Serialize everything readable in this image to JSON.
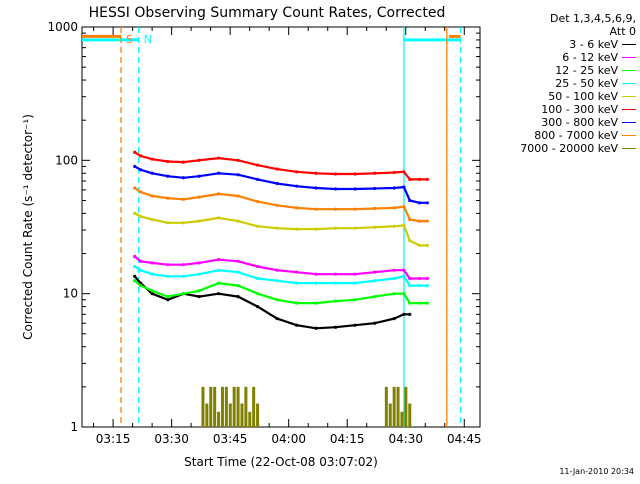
{
  "footer": {
    "date": "11-Jan-2010 20:34"
  },
  "legend": {
    "header_line1": "Det 1,3,4,5,6,9,",
    "header_line2": "Att 0"
  },
  "chart_data": {
    "type": "line",
    "title": "HESSI Observing Summary Count Rates, Corrected",
    "xlabel": "Start Time (22-Oct-08 03:07:02)",
    "ylabel": "Corrected Count Rate (s⁻¹ detector⁻¹)",
    "yscale": "log",
    "ylim": [
      1,
      1000
    ],
    "y_ticks": [
      {
        "value": 1,
        "label": "1"
      },
      {
        "value": 10,
        "label": "10"
      },
      {
        "value": 100,
        "label": "100"
      },
      {
        "value": 1000,
        "label": "1000"
      }
    ],
    "x_unit": "minutes from 03:07:02",
    "xlim": [
      0,
      102
    ],
    "x_ticks": [
      {
        "value": 7.97,
        "label": "03:15"
      },
      {
        "value": 22.97,
        "label": "03:30"
      },
      {
        "value": 37.97,
        "label": "03:45"
      },
      {
        "value": 52.97,
        "label": "04:00"
      },
      {
        "value": 67.97,
        "label": "04:15"
      },
      {
        "value": 82.97,
        "label": "04:30"
      },
      {
        "value": 97.97,
        "label": "04:45"
      }
    ],
    "grid": false,
    "legend_position": "right",
    "series": [
      {
        "name": "3 - 6 keV",
        "color": "#000000",
        "x": [
          13.5,
          15,
          18,
          22,
          26,
          30,
          35,
          40,
          45,
          50,
          55,
          60,
          65,
          70,
          75,
          80,
          82.5,
          84
        ],
        "values": [
          13.5,
          12,
          10,
          9,
          10,
          9.5,
          10,
          9.5,
          8,
          6.5,
          5.8,
          5.5,
          5.6,
          5.8,
          6,
          6.5,
          7,
          7
        ]
      },
      {
        "name": "6 - 12 keV",
        "color": "#ff00ff",
        "x": [
          13.5,
          15,
          18,
          22,
          26,
          30,
          35,
          40,
          45,
          50,
          55,
          60,
          65,
          70,
          75,
          80,
          82.5,
          84,
          86.5,
          88.5
        ],
        "values": [
          19,
          17.5,
          17,
          16.5,
          16.5,
          17,
          18,
          17.5,
          16,
          15,
          14.5,
          14,
          14,
          14,
          14.5,
          15,
          15,
          13,
          13,
          13
        ]
      },
      {
        "name": "12 - 25 keV",
        "color": "#00ff00",
        "x": [
          13.5,
          15,
          18,
          22,
          26,
          30,
          35,
          40,
          45,
          50,
          55,
          60,
          65,
          70,
          75,
          80,
          82.5,
          84,
          86.5,
          88.5
        ],
        "values": [
          12.5,
          11.5,
          10.5,
          9.5,
          10,
          10.5,
          12,
          11.5,
          10,
          9,
          8.5,
          8.5,
          8.8,
          9,
          9.5,
          10,
          10,
          8.5,
          8.5,
          8.5
        ]
      },
      {
        "name": "25 - 50 keV",
        "color": "#00ffff",
        "x": [
          13.5,
          15,
          18,
          22,
          26,
          30,
          35,
          40,
          45,
          50,
          55,
          60,
          65,
          70,
          75,
          80,
          82.5,
          84,
          86.5,
          88.5
        ],
        "values": [
          16,
          15,
          14,
          13.5,
          13.5,
          14,
          15,
          14.5,
          13,
          12.5,
          12,
          12,
          12,
          12,
          12.5,
          13,
          13.5,
          11.5,
          11.5,
          11.5
        ]
      },
      {
        "name": "50 - 100 keV",
        "color": "#cccc00",
        "x": [
          13.5,
          15,
          18,
          22,
          26,
          30,
          35,
          40,
          45,
          50,
          55,
          60,
          65,
          70,
          75,
          80,
          82.5,
          84,
          86.5,
          88.5
        ],
        "values": [
          40,
          38,
          36,
          34,
          34,
          35,
          37,
          35,
          32,
          31,
          30.5,
          30.5,
          31,
          31,
          31.5,
          32,
          32.5,
          25,
          23,
          23
        ]
      },
      {
        "name": "100 - 300 keV",
        "color": "#ff0000",
        "x": [
          13.5,
          15,
          18,
          22,
          26,
          30,
          35,
          40,
          45,
          50,
          55,
          60,
          65,
          70,
          75,
          80,
          82.5,
          84,
          86.5,
          88.5
        ],
        "values": [
          115,
          108,
          102,
          98,
          97,
          100,
          104,
          100,
          92,
          86,
          82,
          80,
          79,
          79,
          80,
          81,
          82,
          72,
          72,
          72
        ]
      },
      {
        "name": "300 - 800 keV",
        "color": "#0000ff",
        "x": [
          13.5,
          15,
          18,
          22,
          26,
          30,
          35,
          40,
          45,
          50,
          55,
          60,
          65,
          70,
          75,
          80,
          82.5,
          84,
          86.5,
          88.5
        ],
        "values": [
          90,
          85,
          80,
          76,
          74,
          76,
          80,
          78,
          72,
          67,
          64,
          62,
          61,
          61,
          61.5,
          62,
          63,
          50,
          48,
          48
        ]
      },
      {
        "name": "800 - 7000 keV",
        "color": "#ff8000",
        "x": [
          13.5,
          15,
          18,
          22,
          26,
          30,
          35,
          40,
          45,
          50,
          55,
          60,
          65,
          70,
          75,
          80,
          82.5,
          84,
          86.5,
          88.5
        ],
        "values": [
          62,
          58,
          54,
          52,
          51,
          53,
          56,
          54,
          49,
          46,
          44,
          43,
          43,
          43,
          43.5,
          44,
          45,
          36,
          35,
          35
        ]
      },
      {
        "name": "7000 - 20000 keV",
        "color": "#808000",
        "x": [
          31,
          32,
          33,
          34,
          35,
          36,
          37,
          38,
          39,
          40,
          41,
          42,
          43,
          44,
          45,
          78,
          79,
          80,
          81,
          82,
          83,
          84
        ],
        "values": [
          2,
          1.5,
          2,
          2,
          1.3,
          2,
          2,
          1.5,
          2,
          2,
          1.5,
          2,
          1.3,
          2,
          1.5,
          2,
          1.5,
          2,
          2,
          1.3,
          2,
          1.5
        ]
      }
    ],
    "flag_bars": {
      "color": "#00ffff",
      "level": 800,
      "spans": [
        [
          0,
          14.5
        ],
        [
          82.5,
          97
        ]
      ]
    },
    "attenuator_bars": {
      "color": "#ff8000",
      "level": 850,
      "spans": [
        [
          0,
          10
        ],
        [
          94,
          97
        ]
      ]
    },
    "markers": [
      {
        "x": 10,
        "color": "#ff8000",
        "label": "S"
      },
      {
        "x": 14.5,
        "color": "#00ffff",
        "label": "N"
      },
      {
        "x": 97,
        "color": "#00ffff",
        "label": ""
      }
    ],
    "solid_verticals": [
      {
        "x": 82.5,
        "color": "#00ffff"
      },
      {
        "x": 93.5,
        "color": "#ff8000"
      }
    ]
  }
}
